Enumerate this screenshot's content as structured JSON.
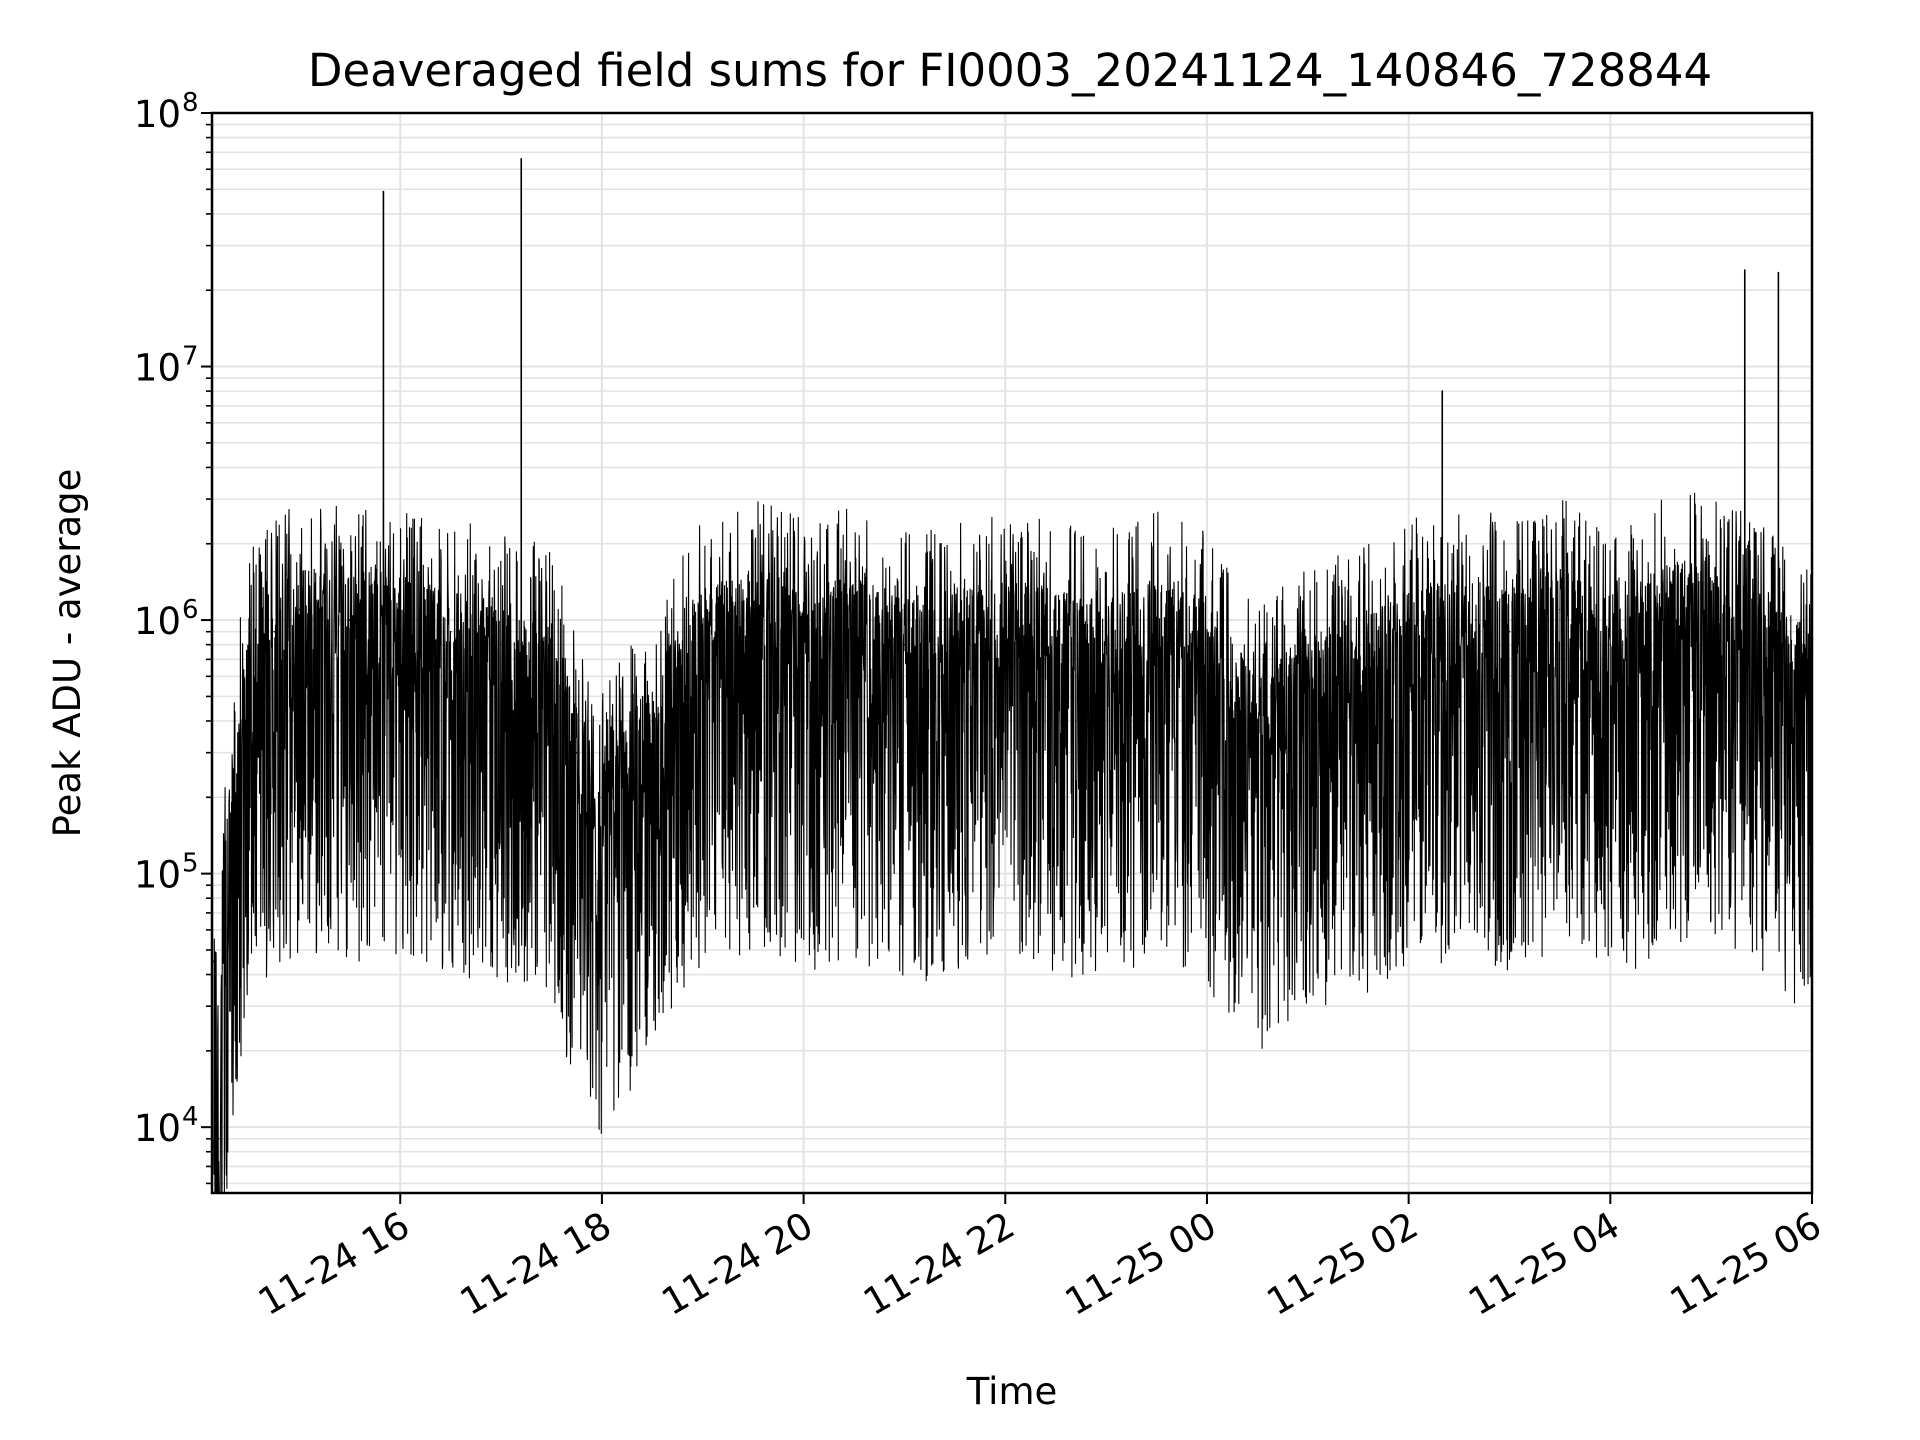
{
  "chart_data": {
    "type": "line",
    "title": "Deaveraged field sums for FI0003_20241124_140846_728844",
    "xlabel": "Time",
    "ylabel": "Peak ADU - average",
    "yscale": "log",
    "ylim": [
      5500,
      100000000
    ],
    "xlim": [
      "2024-11-24 14:08",
      "2024-11-25 06:00"
    ],
    "grid": true,
    "line_color": "#000000",
    "grid_color": "#e3e3e3",
    "x_ticks": [
      {
        "label": "11-24 16",
        "value": "2024-11-24 16:00"
      },
      {
        "label": "11-24 18",
        "value": "2024-11-24 18:00"
      },
      {
        "label": "11-24 20",
        "value": "2024-11-24 20:00"
      },
      {
        "label": "11-24 22",
        "value": "2024-11-24 22:00"
      },
      {
        "label": "11-25 00",
        "value": "2024-11-25 00:00"
      },
      {
        "label": "11-25 02",
        "value": "2024-11-25 02:00"
      },
      {
        "label": "11-25 04",
        "value": "2024-11-25 04:00"
      },
      {
        "label": "11-25 06",
        "value": "2024-11-25 06:00"
      }
    ],
    "y_ticks": [
      {
        "base": "10",
        "exp": "4",
        "value": 10000
      },
      {
        "base": "10",
        "exp": "5",
        "value": 100000
      },
      {
        "base": "10",
        "exp": "6",
        "value": 1000000
      },
      {
        "base": "10",
        "exp": "7",
        "value": 10000000
      },
      {
        "base": "10",
        "exp": "8",
        "value": 100000000
      }
    ],
    "series": [
      {
        "points": [
          [
            "2024-11-24 14:09",
            45000
          ],
          [
            "2024-11-24 14:12",
            9000
          ],
          [
            "2024-11-24 14:15",
            80000
          ],
          [
            "2024-11-24 14:20",
            200000
          ],
          [
            "2024-11-24 14:30",
            700000
          ],
          [
            "2024-11-24 14:45",
            900000
          ],
          [
            "2024-11-24 15:00",
            1100000
          ],
          [
            "2024-11-24 15:30",
            1000000
          ],
          [
            "2024-11-24 15:50",
            49000000
          ],
          [
            "2024-11-24 16:00",
            1000000
          ],
          [
            "2024-11-24 16:30",
            900000
          ],
          [
            "2024-11-24 17:00",
            800000
          ],
          [
            "2024-11-24 17:12",
            66000000
          ],
          [
            "2024-11-24 17:30",
            700000
          ],
          [
            "2024-11-24 17:45",
            300000
          ],
          [
            "2024-11-24 18:00",
            200000
          ],
          [
            "2024-11-24 18:30",
            400000
          ],
          [
            "2024-11-24 19:00",
            900000
          ],
          [
            "2024-11-24 19:30",
            1100000
          ],
          [
            "2024-11-24 20:00",
            900000
          ],
          [
            "2024-11-24 20:30",
            1000000
          ],
          [
            "2024-11-24 21:00",
            800000
          ],
          [
            "2024-11-24 21:30",
            900000
          ],
          [
            "2024-11-24 22:00",
            1000000
          ],
          [
            "2024-11-24 22:30",
            900000
          ],
          [
            "2024-11-24 23:00",
            800000
          ],
          [
            "2024-11-24 23:30",
            1000000
          ],
          [
            "2024-11-25 00:00",
            800000
          ],
          [
            "2024-11-25 00:30",
            400000
          ],
          [
            "2024-11-25 01:00",
            600000
          ],
          [
            "2024-11-25 01:30",
            700000
          ],
          [
            "2024-11-25 02:00",
            900000
          ],
          [
            "2024-11-25 02:20",
            8000000
          ],
          [
            "2024-11-25 02:40",
            1000000
          ],
          [
            "2024-11-25 03:00",
            900000
          ],
          [
            "2024-11-25 03:30",
            1100000
          ],
          [
            "2024-11-25 04:00",
            800000
          ],
          [
            "2024-11-25 04:30",
            1100000
          ],
          [
            "2024-11-25 05:00",
            1200000
          ],
          [
            "2024-11-25 05:20",
            24000000
          ],
          [
            "2024-11-25 05:40",
            23500000
          ],
          [
            "2024-11-25 06:00",
            600000
          ]
        ]
      }
    ]
  }
}
